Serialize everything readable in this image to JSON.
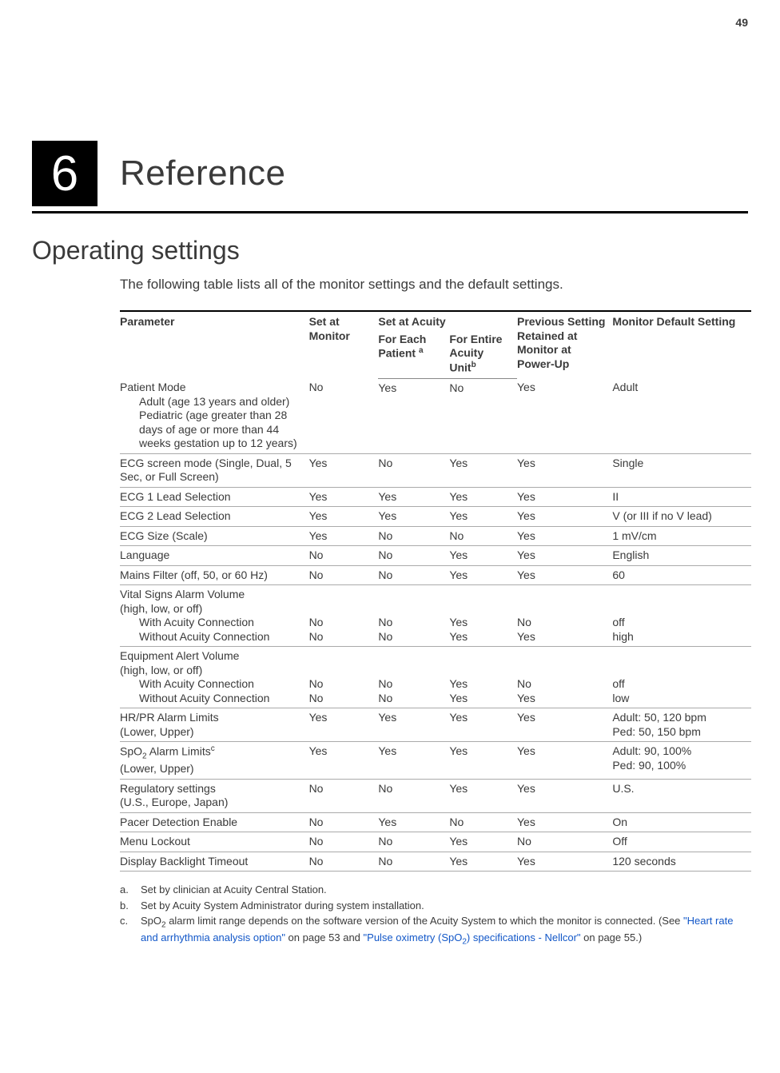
{
  "page_number": "49",
  "chapter_number": "6",
  "chapter_title": "Reference",
  "section_title": "Operating settings",
  "intro_text": "The following table lists all of the monitor settings and the default settings.",
  "table": {
    "header": {
      "parameter": "Parameter",
      "set_at_monitor": "Set at Monitor",
      "set_at_acuity": "Set at Acuity",
      "for_each_patient": "For Each Patient ",
      "for_each_patient_sup": "a",
      "for_entire_unit": "For Entire Acuity Unit",
      "for_entire_unit_sup": "b",
      "previous_setting": "Previous Setting Retained at Monitor at Power-Up",
      "monitor_default": "Monitor Default Setting"
    },
    "rows": [
      {
        "param_main": "Patient Mode",
        "param_sub": "Adult (age 13 years and older)\nPediatric (age greater than 28 days of age or more than  44 weeks gestation up to 12 years)",
        "set": "No",
        "each": "Yes",
        "entire": "No",
        "prev": "Yes",
        "def": "Adult"
      },
      {
        "param_main": "ECG screen mode (Single, Dual, 5 Sec, or Full Screen)",
        "set": "Yes",
        "each": "No",
        "entire": "Yes",
        "prev": "Yes",
        "def": "Single"
      },
      {
        "param_main": "ECG 1 Lead Selection",
        "set": "Yes",
        "each": "Yes",
        "entire": "Yes",
        "prev": "Yes",
        "def": "II"
      },
      {
        "param_main": "ECG 2 Lead Selection",
        "set": "Yes",
        "each": "Yes",
        "entire": "Yes",
        "prev": "Yes",
        "def": "V (or III if no V lead)"
      },
      {
        "param_main": "ECG Size (Scale)",
        "set": "Yes",
        "each": "No",
        "entire": "No",
        "prev": "Yes",
        "def": "1 mV/cm"
      },
      {
        "param_main": "Language",
        "set": "No",
        "each": "No",
        "entire": "Yes",
        "prev": "Yes",
        "def": "English"
      },
      {
        "param_main": "Mains Filter (off, 50, or 60 Hz)",
        "set": "No",
        "each": "No",
        "entire": "Yes",
        "prev": "Yes",
        "def": "60"
      },
      {
        "param_main": "Vital Signs Alarm Volume\n(high, low, or off)",
        "multi": [
          {
            "label": "With Acuity Connection",
            "set": "No",
            "each": "No",
            "entire": "Yes",
            "prev": "No",
            "def": "off"
          },
          {
            "label": "Without Acuity Connection",
            "set": "No",
            "each": "No",
            "entire": "Yes",
            "prev": "Yes",
            "def": "high"
          }
        ]
      },
      {
        "param_main": "Equipment Alert Volume\n(high, low, or off)",
        "multi": [
          {
            "label": "With Acuity Connection",
            "set": "No",
            "each": "No",
            "entire": "Yes",
            "prev": "No",
            "def": "off"
          },
          {
            "label": "Without Acuity Connection",
            "set": "No",
            "each": "No",
            "entire": "Yes",
            "prev": "Yes",
            "def": "low"
          }
        ]
      },
      {
        "param_main": "HR/PR Alarm Limits\n(Lower, Upper)",
        "set": "Yes",
        "each": "Yes",
        "entire": "Yes",
        "prev": "Yes",
        "def": "Adult: 50, 120 bpm\nPed: 50, 150 bpm"
      },
      {
        "param_main_html": "SpO<sub class=\"chem\">2</sub> Alarm Limits<sup class=\"fn\">c</sup><br>(Lower, Upper)",
        "set": "Yes",
        "each": "Yes",
        "entire": "Yes",
        "prev": "Yes",
        "def": "Adult: 90, 100%\nPed: 90, 100%"
      },
      {
        "param_main": "Regulatory settings\n(U.S., Europe, Japan)",
        "set": "No",
        "each": "No",
        "entire": "Yes",
        "prev": "Yes",
        "def": "U.S."
      },
      {
        "param_main": "Pacer Detection Enable",
        "set": "No",
        "each": "Yes",
        "entire": "No",
        "prev": "Yes",
        "def": "On"
      },
      {
        "param_main": "Menu Lockout",
        "set": "No",
        "each": "No",
        "entire": "Yes",
        "prev": "No",
        "def": "Off"
      },
      {
        "param_main": "Display Backlight Timeout",
        "set": "No",
        "each": "No",
        "entire": "Yes",
        "prev": "Yes",
        "def": "120 seconds"
      }
    ]
  },
  "footnotes": {
    "a": {
      "mark": "a.",
      "text": "Set by clinician at Acuity Central Station."
    },
    "b": {
      "mark": "b.",
      "text": "Set by Acuity System Administrator during system installation."
    },
    "c": {
      "mark": "c.",
      "pre": "SpO",
      "sub": "2",
      "mid1": " alarm limit range depends on the software version of the Acuity System to which the monitor is connected. (See ",
      "xref1": "\"Heart rate and arrhythmia analysis option\"",
      "mid2": " on page 53 and ",
      "xref2": "\"Pulse oximetry (SpO",
      "xref2_sub": "2",
      "xref2_tail": ") specifications - Nellcor\"",
      "mid3": " on page 55.)"
    }
  },
  "colors": {
    "text": "#3a3a3a",
    "link": "#1257c8",
    "rule": "#000000",
    "row_border": "#aaaaaa"
  }
}
